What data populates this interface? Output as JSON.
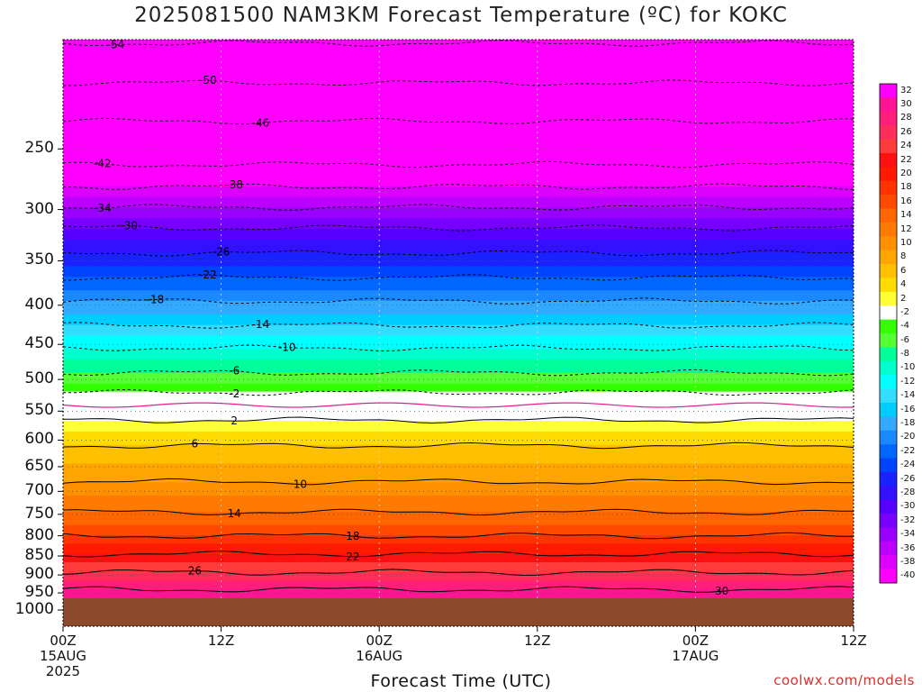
{
  "title": "2025081500 NAM3KM Forecast Temperature (ºC) for KOKC",
  "watermark": "coolwx.com/models",
  "chart_data": {
    "type": "heatmap",
    "title": "2025081500 NAM3KM Forecast Temperature (ºC) for KOKC",
    "xlabel": "Forecast Time (UTC)",
    "ylabel": "",
    "y_axis": {
      "scale": "log-pressure",
      "inverted": true,
      "range_hPa": [
        180,
        1050
      ],
      "ticks": [
        250,
        300,
        350,
        400,
        450,
        500,
        550,
        600,
        650,
        700,
        750,
        800,
        850,
        900,
        950,
        1000
      ]
    },
    "x_axis": {
      "range_hours": [
        0,
        60
      ],
      "ticks": [
        {
          "hour": 0,
          "lines": [
            "00Z",
            "15AUG",
            "2025"
          ]
        },
        {
          "hour": 12,
          "lines": [
            "12Z"
          ]
        },
        {
          "hour": 24,
          "lines": [
            "00Z",
            "16AUG"
          ]
        },
        {
          "hour": 36,
          "lines": [
            "12Z"
          ]
        },
        {
          "hour": 48,
          "lines": [
            "00Z",
            "17AUG"
          ]
        },
        {
          "hour": 60,
          "lines": [
            "12Z"
          ]
        }
      ]
    },
    "ground_level_hPa": 965,
    "freezing_level_hPa": 540,
    "grid": "dotted",
    "colorbar": {
      "levels": [
        32,
        30,
        28,
        26,
        24,
        22,
        20,
        18,
        16,
        14,
        12,
        10,
        8,
        6,
        4,
        2,
        -2,
        -4,
        -6,
        -8,
        -10,
        -12,
        -14,
        -16,
        -18,
        -20,
        -22,
        -24,
        -26,
        -28,
        -30,
        -32,
        -34,
        -36,
        -38,
        -40
      ],
      "colors": [
        "#ff00ff",
        "#ff1493",
        "#ff1f7a",
        "#ff2d5a",
        "#ff3a3a",
        "#ff1010",
        "#ff1a00",
        "#ff3300",
        "#ff4a00",
        "#ff6600",
        "#ff7a00",
        "#ff9000",
        "#ffa500",
        "#ffc000",
        "#ffdc00",
        "#ffff33",
        "#ffffff",
        "#33ff00",
        "#55ff33",
        "#00ff99",
        "#00ffcc",
        "#00ffff",
        "#33ddff",
        "#00ccff",
        "#33aaff",
        "#1a88ff",
        "#0066ff",
        "#0044ff",
        "#1a22ff",
        "#3311ff",
        "#5500ff",
        "#7700ff",
        "#9900ff",
        "#bb00ff",
        "#dd00ff",
        "#ff00ff"
      ]
    },
    "isotherms": [
      {
        "temp": -54,
        "hPa": 182,
        "dashed": true,
        "label_hour": 4
      },
      {
        "temp": -50,
        "hPa": 205,
        "dashed": true,
        "label_hour": 11
      },
      {
        "temp": -46,
        "hPa": 230,
        "dashed": true,
        "label_hour": 15
      },
      {
        "temp": -42,
        "hPa": 262,
        "dashed": true,
        "label_hour": 3
      },
      {
        "temp": -38,
        "hPa": 280,
        "dashed": true,
        "label_hour": 13
      },
      {
        "temp": -34,
        "hPa": 298,
        "dashed": true,
        "label_hour": 3
      },
      {
        "temp": -30,
        "hPa": 317,
        "dashed": true,
        "label_hour": 5
      },
      {
        "temp": -26,
        "hPa": 342,
        "dashed": true,
        "label_hour": 12
      },
      {
        "temp": -22,
        "hPa": 368,
        "dashed": true,
        "label_hour": 11
      },
      {
        "temp": -18,
        "hPa": 395,
        "dashed": true,
        "label_hour": 7
      },
      {
        "temp": -14,
        "hPa": 425,
        "dashed": true,
        "label_hour": 15
      },
      {
        "temp": -10,
        "hPa": 455,
        "dashed": true,
        "label_hour": 17
      },
      {
        "temp": -6,
        "hPa": 490,
        "dashed": true,
        "label_hour": 13
      },
      {
        "temp": -2,
        "hPa": 520,
        "dashed": true,
        "label_hour": 13
      },
      {
        "temp": 2,
        "hPa": 565,
        "dashed": false,
        "label_hour": 13
      },
      {
        "temp": 6,
        "hPa": 610,
        "dashed": false,
        "label_hour": 10
      },
      {
        "temp": 10,
        "hPa": 680,
        "dashed": false,
        "label_hour": 18
      },
      {
        "temp": 14,
        "hPa": 745,
        "dashed": false,
        "label_hour": 13
      },
      {
        "temp": 18,
        "hPa": 800,
        "dashed": false,
        "label_hour": 22
      },
      {
        "temp": 22,
        "hPa": 845,
        "dashed": false,
        "label_hour": 22
      },
      {
        "temp": 26,
        "hPa": 893,
        "dashed": false,
        "label_hour": 10
      },
      {
        "temp": 30,
        "hPa": 940,
        "dashed": false,
        "label_hour": 50
      }
    ]
  }
}
